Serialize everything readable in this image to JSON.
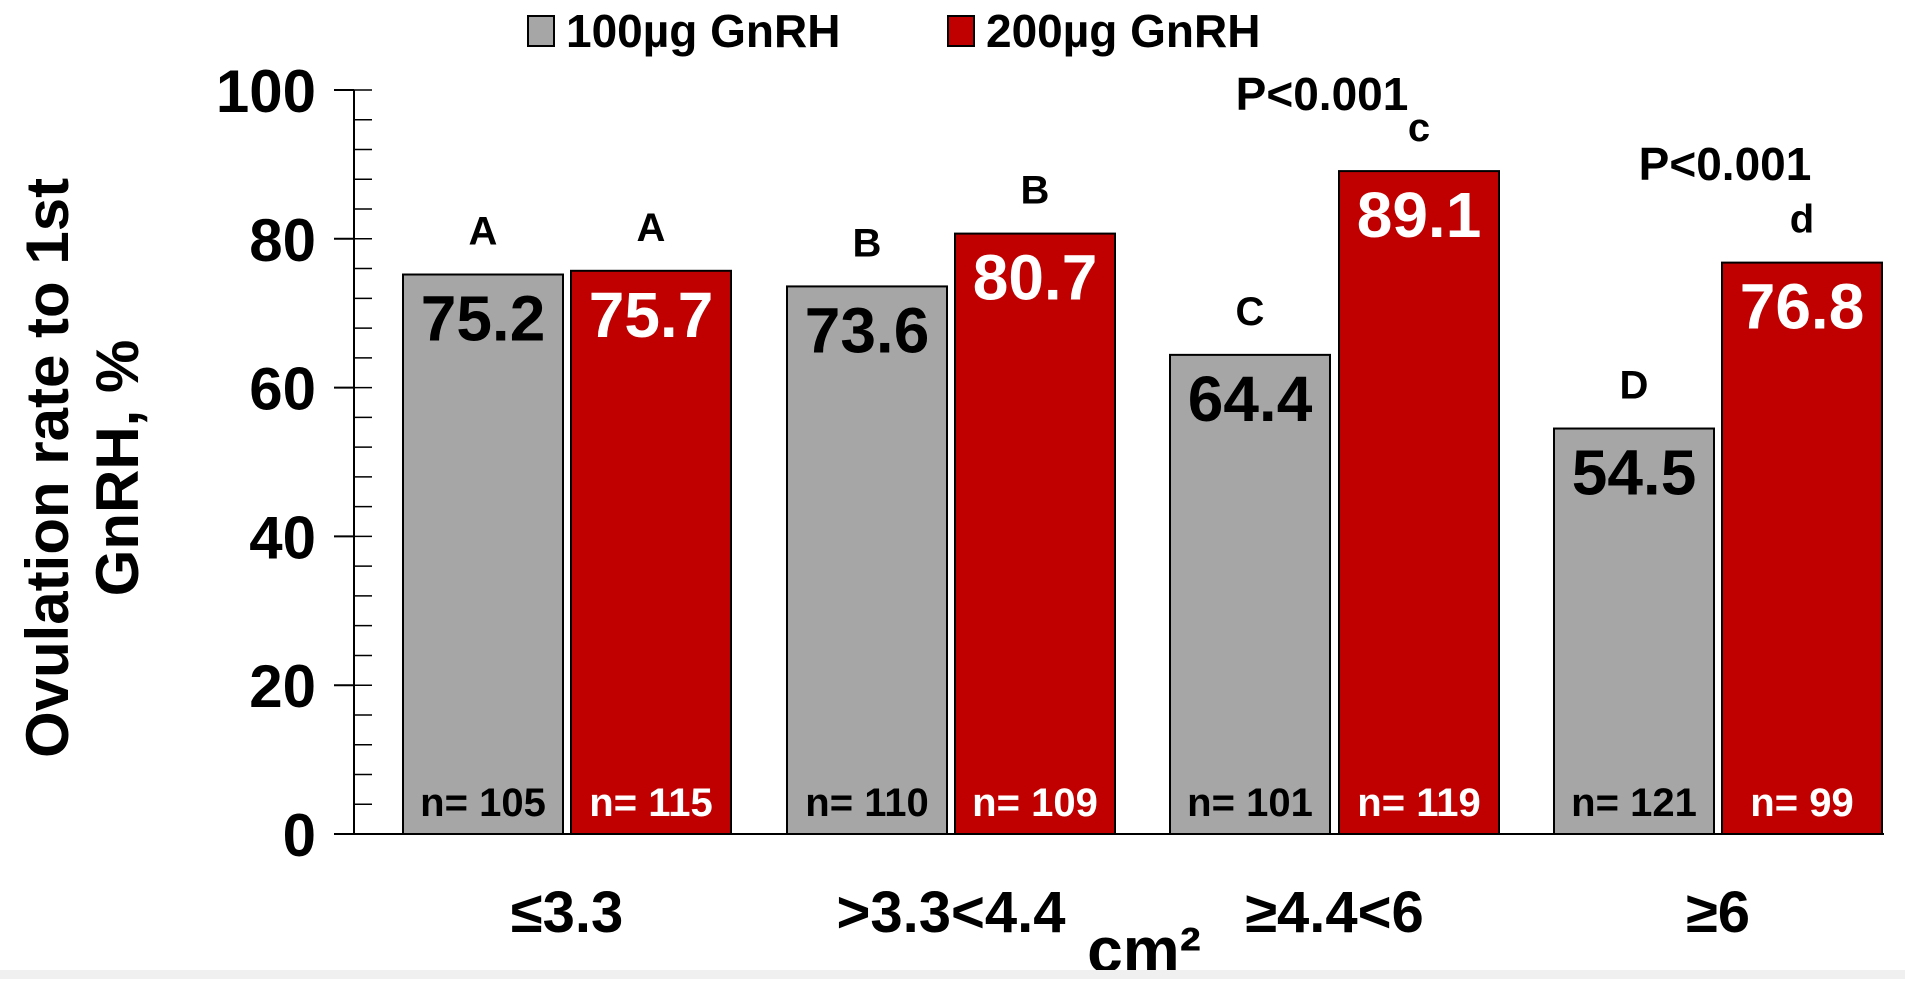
{
  "chart_data": {
    "type": "bar",
    "categories": [
      "≤3.3",
      ">3.3<4.4",
      "≥4.4<6",
      "≥6"
    ],
    "series": [
      {
        "name": "100µg GnRH",
        "color": "#a6a6a6",
        "value_label_color": "#000000",
        "values": [
          75.2,
          73.6,
          64.4,
          54.5
        ],
        "value_labels": [
          "75.2",
          "73.6",
          "64.4",
          "54.5"
        ],
        "sig_letters": [
          "A",
          "B",
          "C",
          "D"
        ],
        "n_labels": [
          "n= 105",
          "n= 110",
          "n= 101",
          "n= 121"
        ]
      },
      {
        "name": "200µg GnRH",
        "color": "#c00000",
        "value_label_color": "#ffffff",
        "values": [
          75.7,
          80.7,
          89.1,
          76.8
        ],
        "value_labels": [
          "75.7",
          "80.7",
          "89.1",
          "76.8"
        ],
        "sig_letters": [
          "A",
          "B",
          "c",
          "d"
        ],
        "n_labels": [
          "n= 115",
          "n= 109",
          "n= 119",
          "n= 99"
        ]
      }
    ],
    "ylabel": "Ovulation rate to 1st GnRH, %",
    "ylabel_lines": [
      "Ovulation rate to 1st",
      "GnRH, %"
    ],
    "xlabel": "cm²",
    "ylim": [
      0,
      100
    ],
    "y_ticks": [
      0,
      20,
      40,
      60,
      80,
      100
    ],
    "y_tick_labels": [
      "0",
      "20",
      "40",
      "60",
      "80",
      "100"
    ],
    "y_minor_step": 4,
    "grid": false,
    "legend_position": "top-center",
    "annotations": [
      {
        "text": "P<0.001",
        "category_index": 2
      },
      {
        "text": "P<0.001",
        "category_index": 3
      }
    ]
  }
}
